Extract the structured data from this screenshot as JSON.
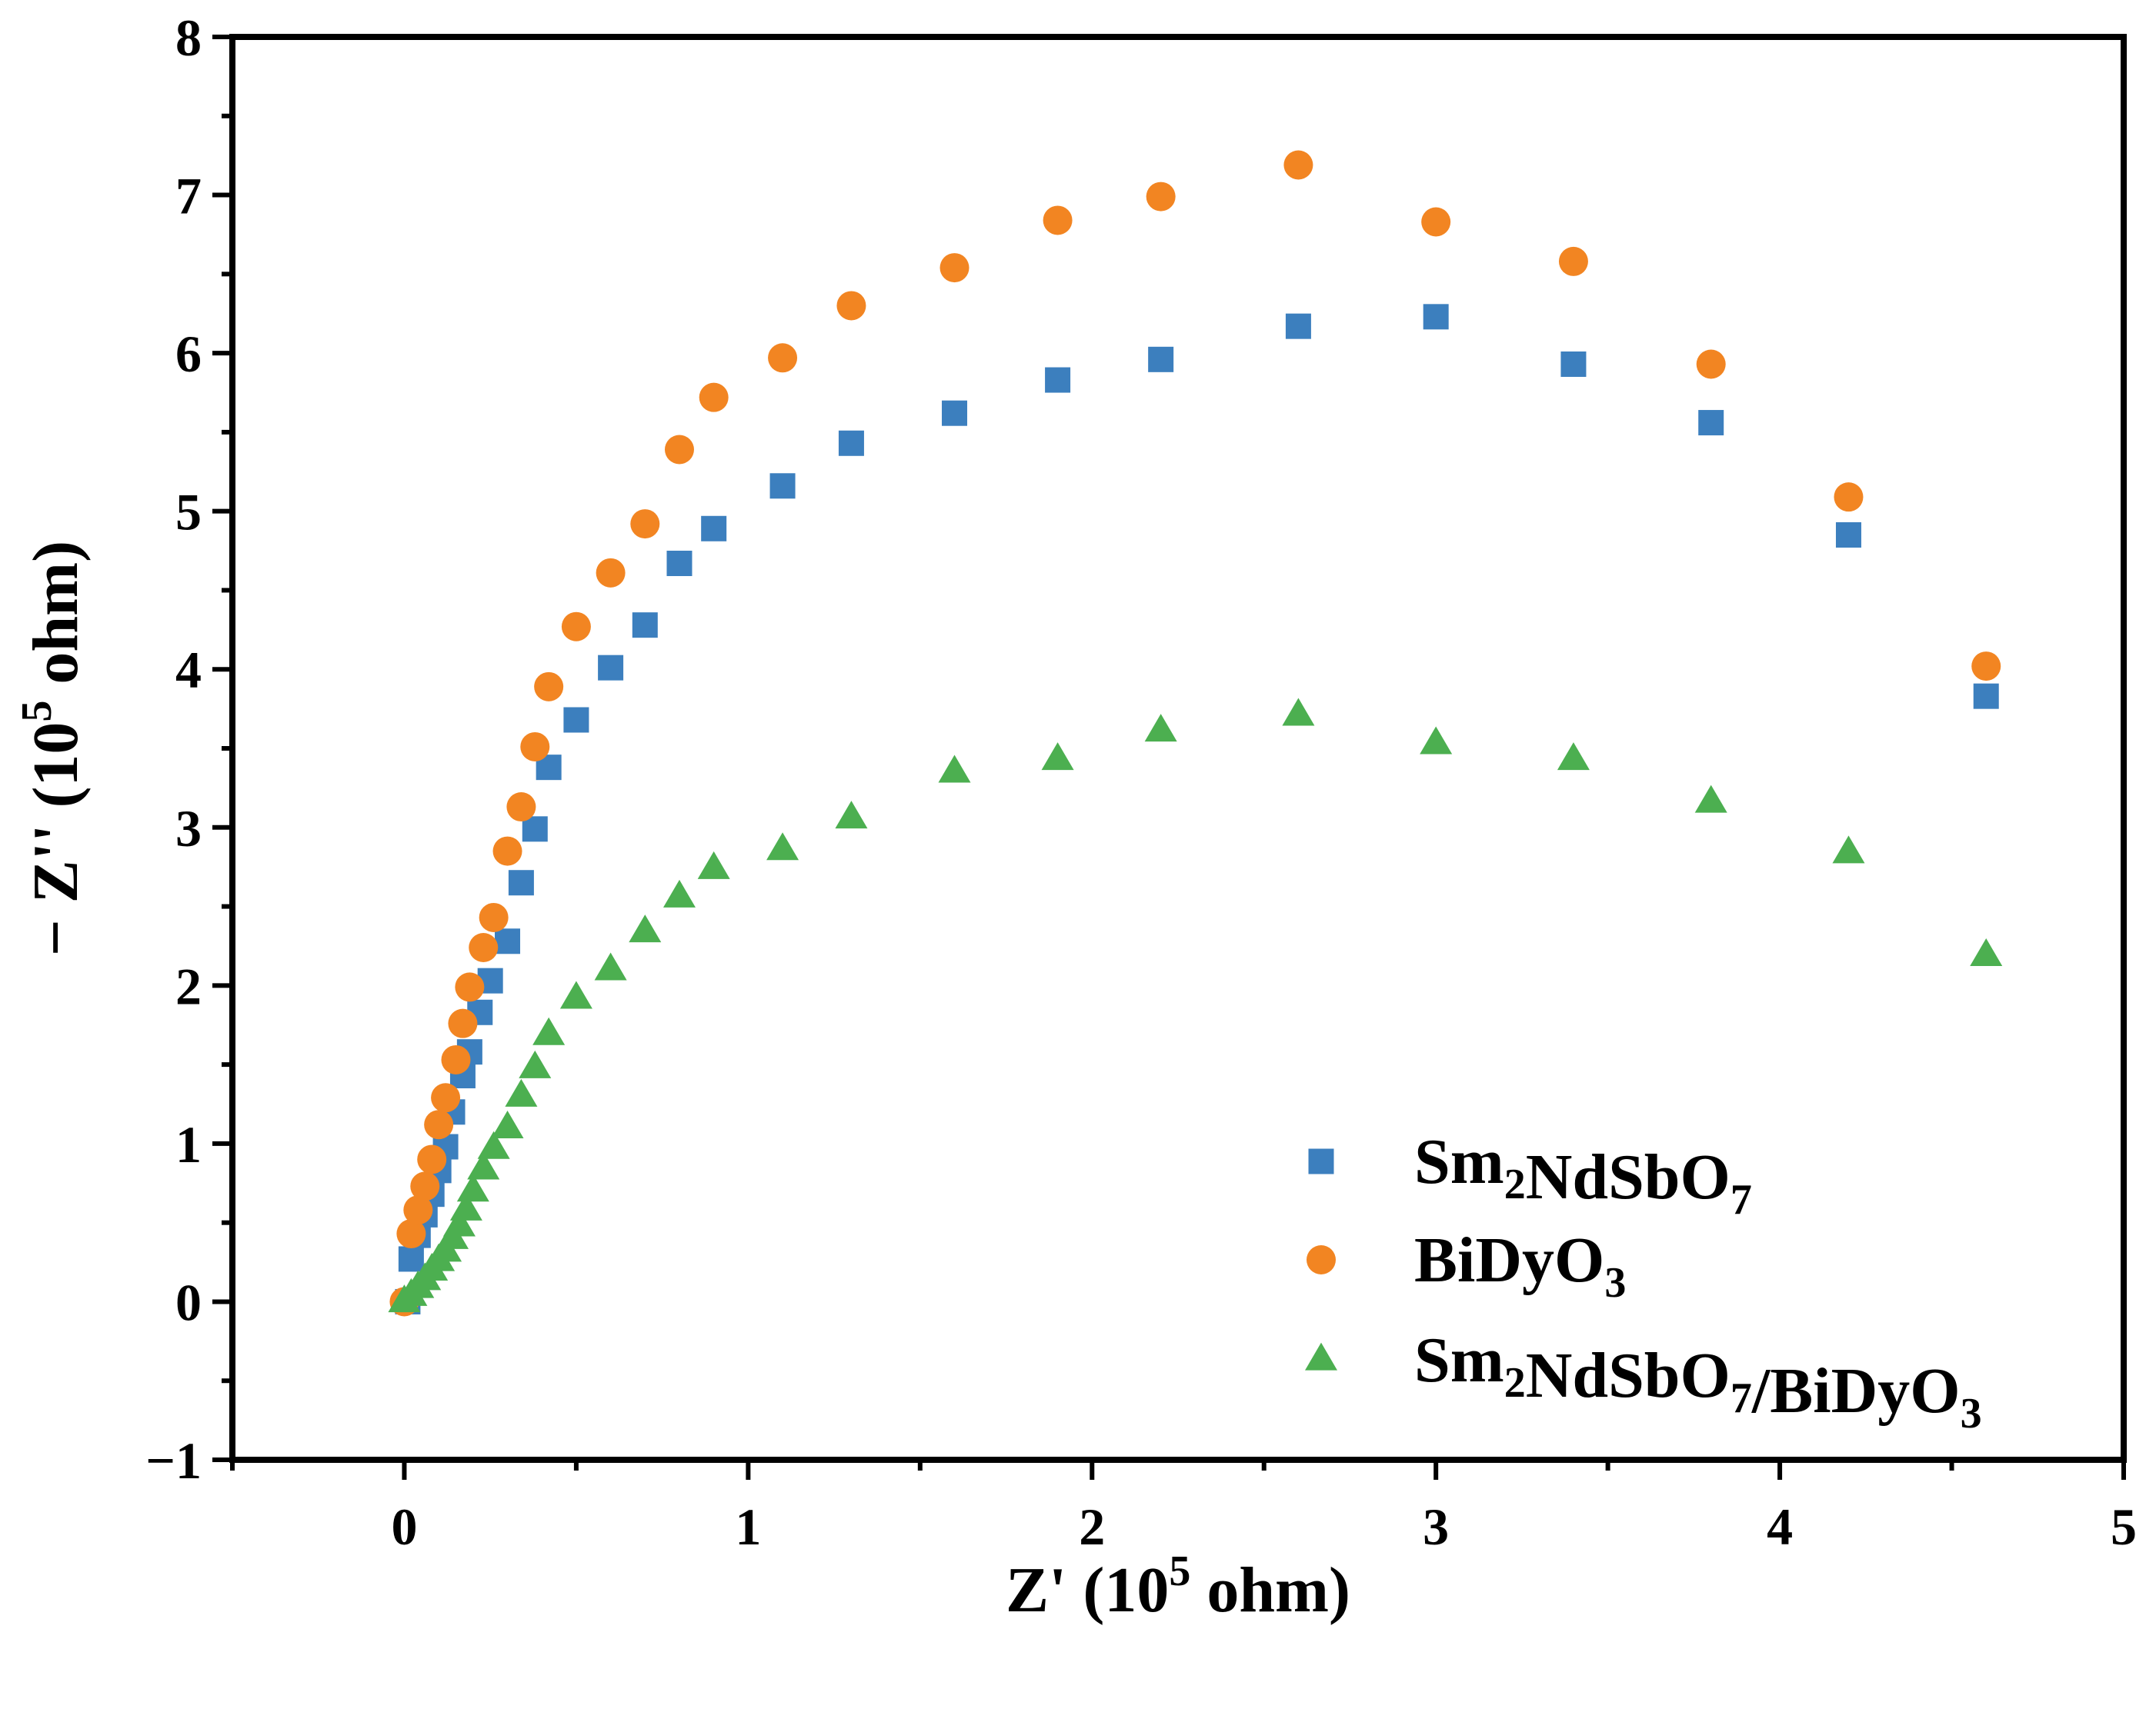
{
  "chart_data": {
    "type": "scatter",
    "xlabel": "Z' (10",
    "xlabel_sup": "5",
    "xlabel_suffix": " ohm)",
    "ylabel": "− Z'' (10",
    "ylabel_sup": "5",
    "ylabel_suffix": " ohm)",
    "xlim": [
      -0.5,
      5
    ],
    "ylim": [
      -1,
      8
    ],
    "xticks": [
      0,
      1,
      2,
      3,
      4,
      5
    ],
    "yticks": [
      -1,
      0,
      1,
      2,
      3,
      4,
      5,
      6,
      7,
      8
    ],
    "xtick_labels": [
      "0",
      "1",
      "2",
      "3",
      "4",
      "5"
    ],
    "ytick_labels": [
      "−1",
      "0",
      "1",
      "2",
      "3",
      "4",
      "5",
      "6",
      "7",
      "8"
    ],
    "grid": false,
    "legend_position": "bottom-right",
    "series": [
      {
        "name": "Sm2NdSbO7",
        "legend_main": "Sm",
        "legend_parts": [
          [
            "Sm",
            ""
          ],
          [
            "2",
            "sub"
          ],
          [
            "NdSbO",
            ""
          ],
          [
            "7",
            "sub"
          ]
        ],
        "marker": "square",
        "color": "#3c7fbe",
        "x": [
          0.01,
          0.02,
          0.04,
          0.06,
          0.08,
          0.1,
          0.12,
          0.14,
          0.17,
          0.19,
          0.22,
          0.25,
          0.3,
          0.34,
          0.38,
          0.42,
          0.5,
          0.6,
          0.7,
          0.8,
          0.9,
          1.1,
          1.3,
          1.6,
          1.9,
          2.2,
          2.6,
          3.0,
          3.4,
          3.8,
          4.2,
          4.6
        ],
        "y": [
          0.0,
          0.27,
          0.42,
          0.55,
          0.68,
          0.83,
          0.98,
          1.2,
          1.43,
          1.58,
          1.83,
          2.03,
          2.28,
          2.65,
          2.99,
          3.38,
          3.68,
          4.01,
          4.28,
          4.67,
          4.89,
          5.16,
          5.43,
          5.62,
          5.83,
          5.96,
          6.17,
          6.23,
          5.93,
          5.56,
          4.85,
          3.83
        ]
      },
      {
        "name": "BiDyO3",
        "legend_parts": [
          [
            "BiDyO",
            ""
          ],
          [
            "3",
            "sub"
          ]
        ],
        "marker": "circle",
        "color": "#f28522",
        "x": [
          0.0,
          0.02,
          0.04,
          0.06,
          0.08,
          0.1,
          0.12,
          0.15,
          0.17,
          0.19,
          0.23,
          0.26,
          0.3,
          0.34,
          0.38,
          0.42,
          0.5,
          0.6,
          0.7,
          0.8,
          0.9,
          1.1,
          1.3,
          1.6,
          1.9,
          2.2,
          2.6,
          3.0,
          3.4,
          3.8,
          4.2,
          4.6
        ],
        "y": [
          0.0,
          0.43,
          0.58,
          0.73,
          0.9,
          1.12,
          1.29,
          1.53,
          1.76,
          1.99,
          2.24,
          2.43,
          2.85,
          3.13,
          3.51,
          3.89,
          4.27,
          4.61,
          4.92,
          5.39,
          5.72,
          5.97,
          6.3,
          6.54,
          6.84,
          6.99,
          7.19,
          6.83,
          6.58,
          5.93,
          5.09,
          4.02
        ]
      },
      {
        "name": "Sm2NdSbO7/BiDyO3",
        "legend_parts": [
          [
            "Sm",
            ""
          ],
          [
            "2",
            "sub"
          ],
          [
            "NdSbO",
            ""
          ],
          [
            "7",
            "sub"
          ],
          [
            "/BiDyO",
            ""
          ],
          [
            "3",
            "sub"
          ]
        ],
        "marker": "triangle",
        "color": "#4caf50",
        "x": [
          0.0,
          0.02,
          0.04,
          0.06,
          0.08,
          0.1,
          0.12,
          0.14,
          0.16,
          0.18,
          0.2,
          0.23,
          0.26,
          0.3,
          0.34,
          0.38,
          0.42,
          0.5,
          0.6,
          0.7,
          0.8,
          0.9,
          1.1,
          1.3,
          1.6,
          1.9,
          2.2,
          2.6,
          3.0,
          3.4,
          3.8,
          4.2,
          4.6
        ],
        "y": [
          0.0,
          0.04,
          0.09,
          0.14,
          0.2,
          0.26,
          0.32,
          0.4,
          0.48,
          0.58,
          0.7,
          0.84,
          0.97,
          1.1,
          1.3,
          1.48,
          1.69,
          1.92,
          2.1,
          2.34,
          2.56,
          2.74,
          2.86,
          3.06,
          3.35,
          3.43,
          3.61,
          3.71,
          3.53,
          3.43,
          3.16,
          2.84,
          2.19
        ]
      }
    ]
  }
}
